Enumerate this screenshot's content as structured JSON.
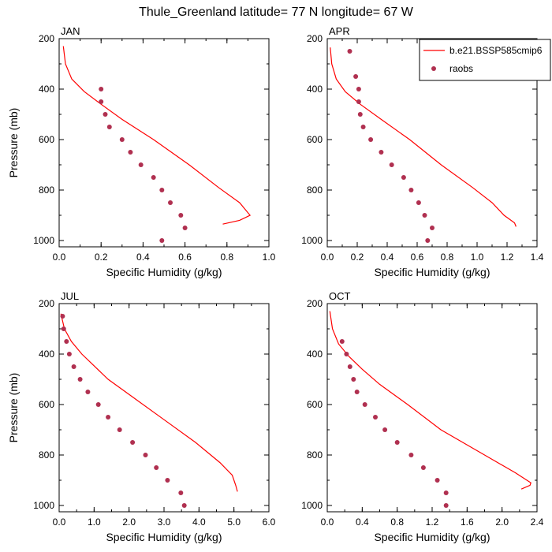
{
  "title": "Thule_Greenland  latitude= 77 N longitude= 67 W",
  "colors": {
    "model": "#ff0000",
    "obs": "#b03050",
    "axes": "#000000"
  },
  "legend": {
    "model_label": "b.e21.BSSP585cmip6",
    "obs_label": "raobs"
  },
  "chart_data": [
    {
      "type": "line",
      "label": "JAN",
      "xlabel": "Specific Humidity (g/kg)",
      "ylabel": "Pressure (mb)",
      "xlim": [
        0,
        1.0
      ],
      "ylim": [
        200,
        1025
      ],
      "y_reversed": true,
      "xticks": [
        "0.0",
        "0.2",
        "0.4",
        "0.6",
        "0.8",
        "1.0"
      ],
      "xtick_values": [
        0,
        0.2,
        0.4,
        0.6,
        0.8,
        1.0
      ],
      "yticks": [
        "200",
        "400",
        "600",
        "800",
        "1000"
      ],
      "ytick_values": [
        200,
        400,
        600,
        800,
        1000
      ],
      "series": [
        {
          "name": "b.e21.BSSP585cmip6",
          "style": "line",
          "x": [
            0.02,
            0.03,
            0.06,
            0.12,
            0.2,
            0.3,
            0.45,
            0.62,
            0.76,
            0.86,
            0.91,
            0.86,
            0.78
          ],
          "y": [
            230,
            300,
            360,
            410,
            460,
            520,
            600,
            700,
            790,
            850,
            900,
            920,
            935
          ]
        },
        {
          "name": "raobs",
          "style": "points",
          "x": [
            0.2,
            0.2,
            0.22,
            0.24,
            0.3,
            0.34,
            0.39,
            0.45,
            0.49,
            0.53,
            0.58,
            0.6,
            0.49
          ],
          "y": [
            400,
            450,
            500,
            550,
            600,
            650,
            700,
            750,
            800,
            850,
            900,
            950,
            1000
          ]
        }
      ]
    },
    {
      "type": "line",
      "label": "APR",
      "xlabel": "Specific Humidity (g/kg)",
      "ylabel": "",
      "xlim": [
        0,
        1.4
      ],
      "ylim": [
        200,
        1025
      ],
      "y_reversed": true,
      "xticks": [
        "0.0",
        "0.2",
        "0.4",
        "0.6",
        "0.8",
        "1.0",
        "1.2",
        "1.4"
      ],
      "xtick_values": [
        0,
        0.2,
        0.4,
        0.6,
        0.8,
        1.0,
        1.2,
        1.4
      ],
      "yticks": [
        "200",
        "400",
        "600",
        "800",
        "1000"
      ],
      "ytick_values": [
        200,
        400,
        600,
        800,
        1000
      ],
      "series": [
        {
          "name": "b.e21.BSSP585cmip6",
          "style": "line",
          "x": [
            0.02,
            0.03,
            0.06,
            0.12,
            0.22,
            0.36,
            0.55,
            0.76,
            0.97,
            1.1,
            1.18,
            1.25,
            1.26
          ],
          "y": [
            235,
            300,
            360,
            410,
            460,
            520,
            600,
            700,
            790,
            850,
            900,
            930,
            945
          ]
        },
        {
          "name": "raobs",
          "style": "points",
          "x": [
            0.15,
            0.19,
            0.21,
            0.21,
            0.22,
            0.24,
            0.29,
            0.36,
            0.43,
            0.51,
            0.56,
            0.61,
            0.65,
            0.7,
            0.67
          ],
          "y": [
            250,
            350,
            400,
            450,
            500,
            550,
            600,
            650,
            700,
            750,
            800,
            850,
            900,
            950,
            1000
          ]
        }
      ]
    },
    {
      "type": "line",
      "label": "JUL",
      "xlabel": "Specific Humidity (g/kg)",
      "ylabel": "Pressure (mb)",
      "xlim": [
        0,
        6.0
      ],
      "ylim": [
        200,
        1025
      ],
      "y_reversed": true,
      "xticks": [
        "0.0",
        "1.0",
        "2.0",
        "3.0",
        "4.0",
        "5.0",
        "6.0"
      ],
      "xtick_values": [
        0,
        1,
        2,
        3,
        4,
        5,
        6
      ],
      "yticks": [
        "200",
        "400",
        "600",
        "800",
        "1000"
      ],
      "ytick_values": [
        200,
        400,
        600,
        800,
        1000
      ],
      "series": [
        {
          "name": "b.e21.BSSP585cmip6",
          "style": "line",
          "x": [
            0.05,
            0.15,
            0.35,
            0.65,
            0.95,
            1.4,
            2.1,
            3.0,
            3.9,
            4.6,
            4.95,
            5.05,
            5.1
          ],
          "y": [
            240,
            300,
            350,
            400,
            440,
            500,
            570,
            660,
            750,
            830,
            880,
            920,
            945
          ]
        },
        {
          "name": "raobs",
          "style": "points",
          "x": [
            0.1,
            0.13,
            0.21,
            0.29,
            0.42,
            0.6,
            0.82,
            1.12,
            1.4,
            1.73,
            2.1,
            2.47,
            2.78,
            3.1,
            3.48,
            3.58
          ],
          "y": [
            250,
            300,
            350,
            400,
            450,
            500,
            550,
            600,
            650,
            700,
            750,
            800,
            850,
            900,
            950,
            1000
          ]
        }
      ]
    },
    {
      "type": "line",
      "label": "OCT",
      "xlabel": "Specific Humidity (g/kg)",
      "ylabel": "",
      "xlim": [
        0,
        2.4
      ],
      "ylim": [
        200,
        1025
      ],
      "y_reversed": true,
      "xticks": [
        "0.0",
        "0.4",
        "0.8",
        "1.2",
        "1.6",
        "2.0",
        "2.4"
      ],
      "xtick_values": [
        0,
        0.4,
        0.8,
        1.2,
        1.6,
        2.0,
        2.4
      ],
      "yticks": [
        "200",
        "400",
        "600",
        "800",
        "1000"
      ],
      "ytick_values": [
        200,
        400,
        600,
        800,
        1000
      ],
      "series": [
        {
          "name": "b.e21.BSSP585cmip6",
          "style": "line",
          "x": [
            0.03,
            0.06,
            0.13,
            0.25,
            0.4,
            0.6,
            0.92,
            1.3,
            1.8,
            2.15,
            2.33,
            2.32,
            2.22
          ],
          "y": [
            230,
            300,
            360,
            410,
            460,
            520,
            600,
            700,
            800,
            870,
            910,
            920,
            935
          ]
        },
        {
          "name": "raobs",
          "style": "points",
          "x": [
            0.17,
            0.22,
            0.26,
            0.3,
            0.34,
            0.43,
            0.55,
            0.66,
            0.8,
            0.96,
            1.1,
            1.26,
            1.36,
            1.36
          ],
          "y": [
            350,
            400,
            450,
            500,
            550,
            600,
            650,
            700,
            750,
            800,
            850,
            900,
            950,
            1000
          ]
        }
      ]
    }
  ]
}
